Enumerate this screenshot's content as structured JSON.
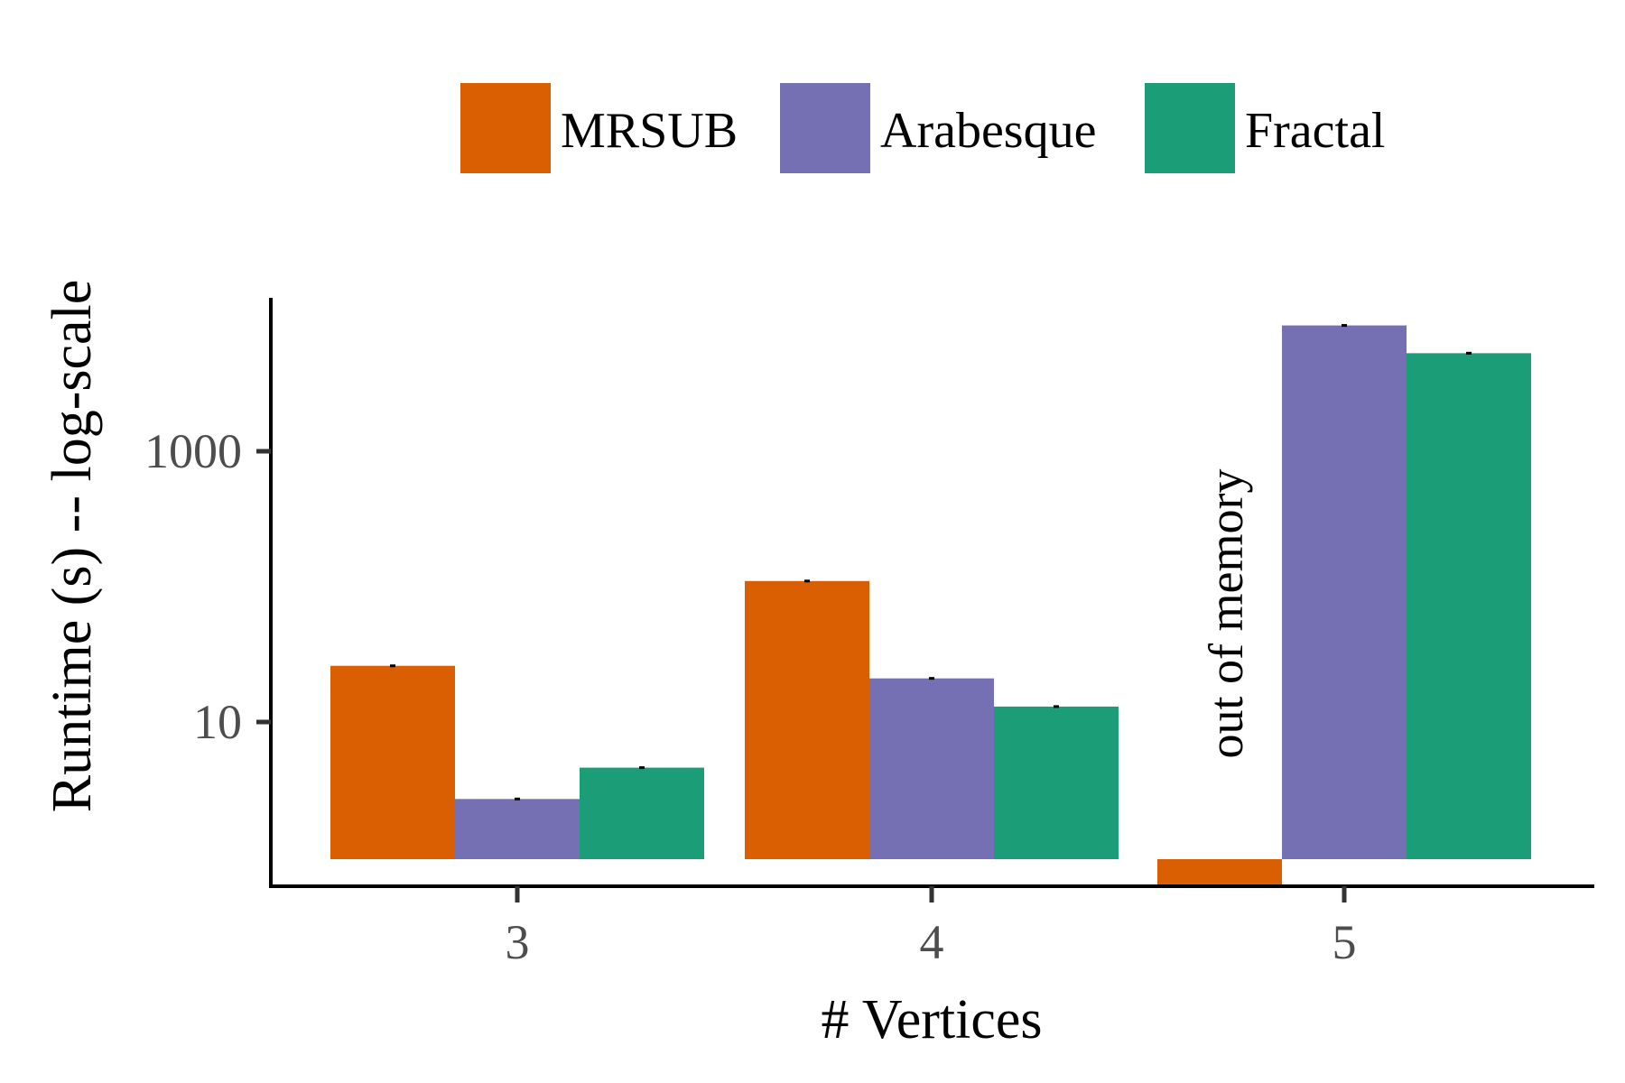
{
  "chart_data": {
    "type": "bar",
    "title": "",
    "xlabel": "# Vertices",
    "ylabel": "Runtime (s) -- log-scale",
    "y_scale": "log",
    "ylim": [
      1,
      10000
    ],
    "y_ticks": [
      10,
      1000
    ],
    "y_tick_labels": [
      "10",
      "1000"
    ],
    "categories": [
      "3",
      "4",
      "5"
    ],
    "legend_position": "top",
    "grid": false,
    "series": [
      {
        "name": "MRSUB",
        "color": "#d95f02",
        "values": [
          26,
          110,
          null
        ]
      },
      {
        "name": "Arabesque",
        "color": "#7570b3",
        "values": [
          2.7,
          21,
          8500
        ]
      },
      {
        "name": "Fractal",
        "color": "#1b9e77",
        "values": [
          4.6,
          13,
          5300
        ]
      }
    ],
    "annotations": [
      {
        "text": "out of memory",
        "category": "5",
        "series": "MRSUB"
      }
    ]
  }
}
